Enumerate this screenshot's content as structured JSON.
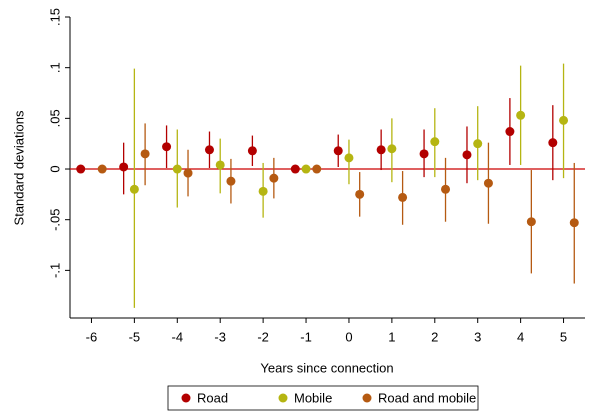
{
  "chart_data": {
    "type": "errorbar",
    "ylabel": "Standard deviations",
    "xlabel": "Years since connection",
    "xlim": [
      -6.5,
      5.5
    ],
    "xticks": [
      -6,
      -5,
      -4,
      -3,
      -2,
      -1,
      0,
      1,
      2,
      3,
      4,
      5
    ],
    "ylim": [
      -0.147,
      0.15
    ],
    "yticks": [
      {
        "value": -0.1,
        "label": "-.1"
      },
      {
        "value": -0.05,
        "label": "-.05"
      },
      0,
      {
        "value": 0.05,
        "label": ".05"
      },
      {
        "value": 0.1,
        "label": ".1"
      },
      {
        "value": 0.15,
        "label": ".15"
      }
    ],
    "yline": 0,
    "yline_color": "#cc0000",
    "grid": false,
    "legend": "bottom",
    "series": [
      {
        "name": "Road",
        "color": "#b30000",
        "x": [
          -6.25,
          -5.25,
          -4.25,
          -3.25,
          -2.25,
          -1.25,
          -0.25,
          0.75,
          1.75,
          2.75,
          3.75,
          4.75
        ],
        "values": [
          0,
          0.002,
          0.022,
          0.019,
          0.018,
          0,
          0.018,
          0.019,
          0.015,
          0.014,
          0.037,
          0.026
        ],
        "lower": [
          null,
          -0.025,
          0.001,
          0.001,
          0.003,
          null,
          0.002,
          -0.001,
          -0.008,
          -0.014,
          0.004,
          -0.011
        ],
        "upper": [
          null,
          0.026,
          0.043,
          0.037,
          0.033,
          null,
          0.034,
          0.039,
          0.039,
          0.042,
          0.07,
          0.063
        ]
      },
      {
        "name": "Mobile",
        "color": "#b5b512",
        "x": [
          -5,
          -4,
          -3,
          -2,
          -1,
          0,
          1,
          2,
          3,
          4,
          5
        ],
        "values": [
          -0.02,
          0.0,
          0.004,
          -0.022,
          0,
          0.011,
          0.02,
          0.027,
          0.025,
          0.053,
          0.048
        ],
        "lower": [
          -0.137,
          -0.038,
          -0.024,
          -0.048,
          null,
          -0.015,
          -0.013,
          -0.008,
          -0.011,
          0.004,
          -0.009
        ],
        "upper": [
          0.099,
          0.039,
          0.03,
          0.006,
          null,
          0.029,
          0.05,
          0.06,
          0.062,
          0.102,
          0.104
        ]
      },
      {
        "name": "Road and mobile",
        "color": "#b55a12",
        "x": [
          -5.75,
          -4.75,
          -3.75,
          -2.75,
          -1.75,
          -0.75,
          0.25,
          1.25,
          2.25,
          3.25,
          4.25,
          5.25
        ],
        "values": [
          0,
          0.015,
          -0.004,
          -0.012,
          -0.009,
          0,
          -0.025,
          -0.028,
          -0.02,
          -0.014,
          -0.052,
          -0.053
        ],
        "lower": [
          null,
          -0.016,
          -0.027,
          -0.034,
          -0.029,
          null,
          -0.047,
          -0.055,
          -0.052,
          -0.054,
          -0.103,
          -0.113
        ],
        "upper": [
          null,
          0.045,
          0.019,
          0.01,
          0.011,
          null,
          -0.003,
          -0.002,
          0.011,
          0.026,
          -0.001,
          0.006
        ]
      }
    ]
  }
}
